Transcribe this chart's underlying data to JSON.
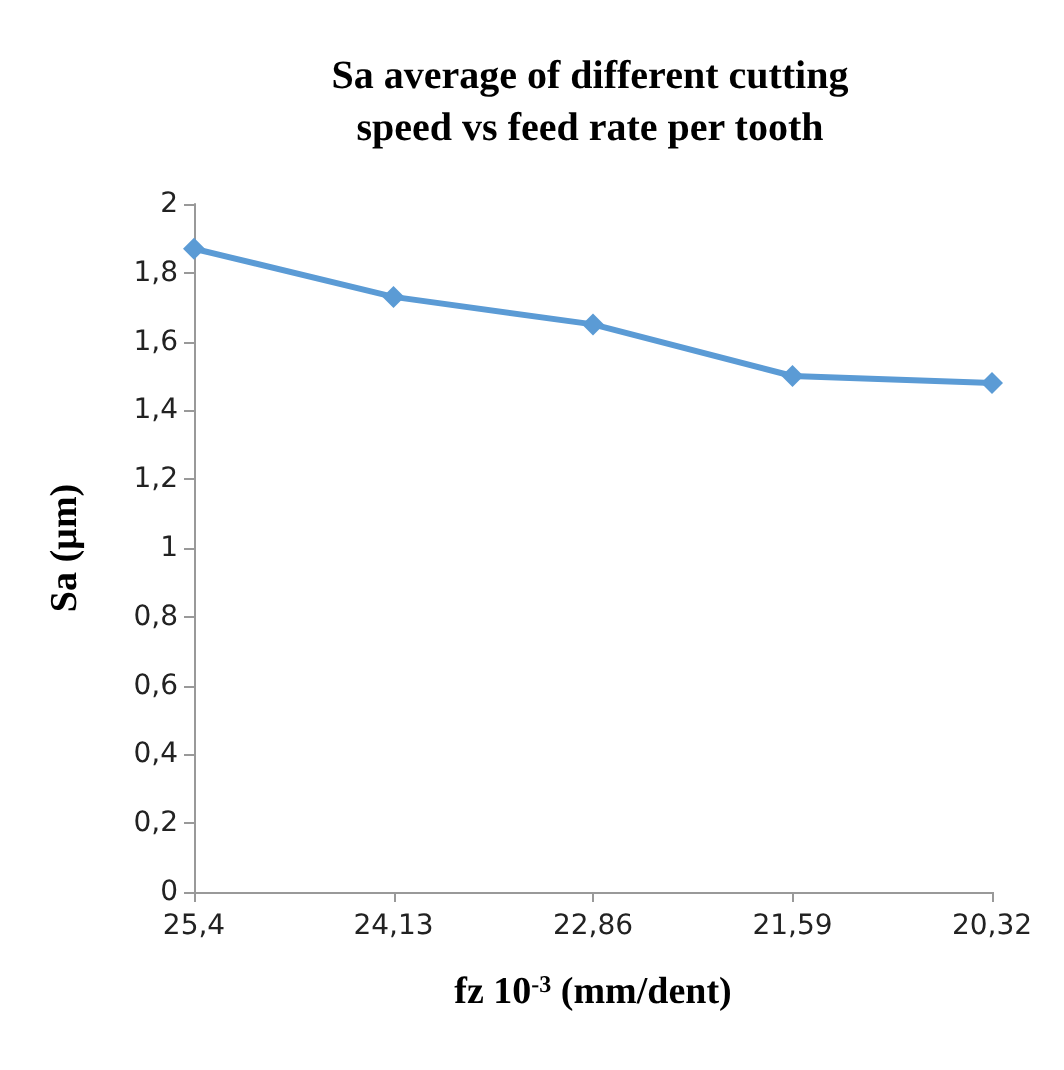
{
  "chart_data": {
    "type": "line",
    "title": "Sa average of different cutting\nspeed vs feed rate per tooth",
    "xlabel": "fz 10$^{-3}$ (mm/dent)",
    "ylabel": "Sa (µm)",
    "categories": [
      "25,4",
      "24,13",
      "22,86",
      "21,59",
      "20,32"
    ],
    "series": [
      {
        "color": "#5b9bd5",
        "values": [
          1.87,
          1.73,
          1.65,
          1.5,
          1.48
        ]
      }
    ],
    "ylim": [
      0,
      2
    ],
    "yticks": [
      {
        "value": 0,
        "label": "0"
      },
      {
        "value": 0.2,
        "label": "0,2"
      },
      {
        "value": 0.4,
        "label": "0,4"
      },
      {
        "value": 0.6,
        "label": "0,6"
      },
      {
        "value": 0.8,
        "label": "0,8"
      },
      {
        "value": 1,
        "label": "1"
      },
      {
        "value": 1.2,
        "label": "1,2"
      },
      {
        "value": 1.4,
        "label": "1,4"
      },
      {
        "value": 1.6,
        "label": "1,6"
      },
      {
        "value": 1.8,
        "label": "1,8"
      },
      {
        "value": 2,
        "label": "2"
      }
    ],
    "grid": false,
    "marker": "diamond",
    "line_style": "solid"
  }
}
